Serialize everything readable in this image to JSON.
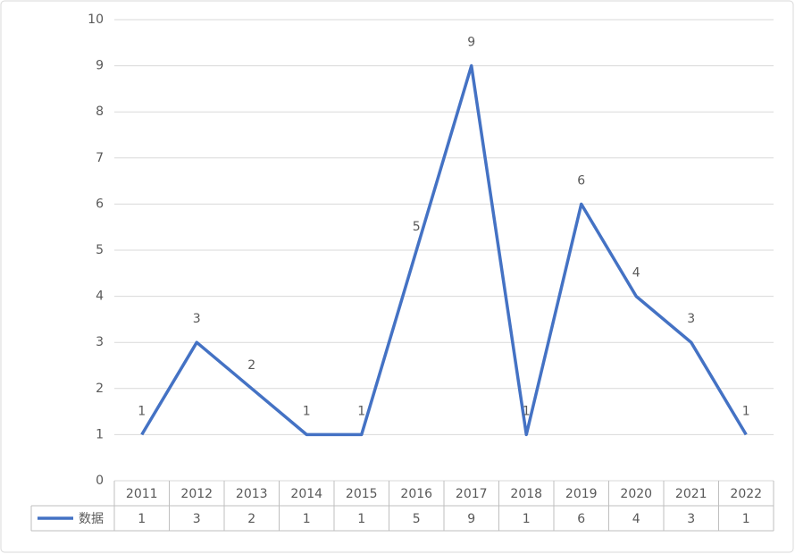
{
  "chart_data": {
    "type": "line",
    "categories": [
      "2011",
      "2012",
      "2013",
      "2014",
      "2015",
      "2016",
      "2017",
      "2018",
      "2019",
      "2020",
      "2021",
      "2022"
    ],
    "series": [
      {
        "name": "数据",
        "color": "#4472c4",
        "values": [
          1,
          3,
          2,
          1,
          1,
          5,
          9,
          1,
          6,
          4,
          3,
          1
        ]
      }
    ],
    "ylim": [
      0,
      10
    ],
    "yticks": [
      0,
      1,
      2,
      3,
      4,
      5,
      6,
      7,
      8,
      9,
      10
    ],
    "grid": true,
    "data_table": true
  }
}
